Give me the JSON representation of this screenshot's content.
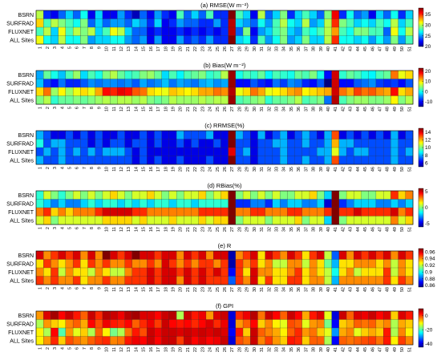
{
  "figure": {
    "rows": [
      "BSRN",
      "SURFRAD",
      "FLUXNET",
      "ALL Sites"
    ],
    "columns": [
      "1",
      "2",
      "3",
      "4",
      "5",
      "6",
      "7",
      "8",
      "9",
      "10",
      "11",
      "12",
      "13",
      "14",
      "15",
      "16",
      "17",
      "18",
      "19",
      "20",
      "21",
      "22",
      "23",
      "24",
      "25",
      "26",
      "27",
      "28",
      "29",
      "30",
      "31",
      "32",
      "33",
      "34",
      "35",
      "36",
      "37",
      "38",
      "39",
      "40",
      "41",
      "42",
      "43",
      "44",
      "45",
      "46",
      "47",
      "48",
      "49",
      "50",
      "51"
    ]
  },
  "chart_data": [
    {
      "type": "heatmap",
      "title": "(a) RMSE(W m⁻²)",
      "colorbar_ticks": [
        20,
        25,
        30,
        35
      ],
      "clim": [
        20,
        38
      ],
      "values": [
        [
          30,
          23,
          22,
          24,
          26,
          24,
          27,
          22,
          26,
          22,
          22,
          25,
          23,
          21,
          24,
          22,
          25,
          23,
          22,
          28,
          24,
          26,
          24,
          28,
          23,
          23,
          38,
          28,
          26,
          22,
          30,
          24,
          26,
          29,
          23,
          26,
          28,
          26,
          24,
          29,
          36,
          23,
          27,
          24,
          25,
          22,
          26,
          24,
          27,
          23,
          26
        ],
        [
          32,
          28,
          30,
          29,
          28,
          27,
          29,
          24,
          26,
          24,
          25,
          25,
          24,
          26,
          25,
          23,
          26,
          22,
          23,
          25,
          24,
          24,
          23,
          23,
          25,
          23,
          37,
          26,
          25,
          24,
          27,
          25,
          28,
          30,
          27,
          26,
          30,
          25,
          26,
          30,
          35,
          29,
          28,
          26,
          27,
          26,
          28,
          27,
          30,
          26,
          28
        ],
        [
          28,
          30,
          26,
          31,
          28,
          30,
          29,
          30,
          26,
          28,
          31,
          30,
          26,
          24,
          24,
          22,
          23,
          22,
          22,
          23,
          22,
          23,
          22,
          23,
          22,
          23,
          37,
          24,
          29,
          22,
          25,
          26,
          28,
          29,
          26,
          25,
          28,
          27,
          28,
          30,
          33,
          28,
          27,
          29,
          29,
          28,
          28,
          24,
          31,
          27,
          30
        ],
        [
          31,
          27,
          26,
          30,
          27,
          27,
          29,
          25,
          26,
          26,
          27,
          27,
          25,
          24,
          25,
          22,
          25,
          22,
          22,
          25,
          23,
          24,
          23,
          25,
          23,
          23,
          38,
          26,
          27,
          23,
          28,
          25,
          27,
          29,
          25,
          26,
          29,
          26,
          26,
          30,
          35,
          27,
          27,
          26,
          27,
          25,
          27,
          25,
          29,
          25,
          28
        ]
      ]
    },
    {
      "type": "heatmap",
      "title": "(b) Bias(W m⁻²)",
      "colorbar_ticks": [
        -10,
        0,
        10,
        20
      ],
      "clim": [
        -15,
        23
      ],
      "values": [
        [
          -4,
          3,
          0,
          -3,
          2,
          5,
          -2,
          2,
          0,
          4,
          6,
          3,
          1,
          2,
          4,
          5,
          3,
          -2,
          2,
          -1,
          2,
          3,
          4,
          1,
          2,
          6,
          22,
          0,
          2,
          1,
          3,
          -1,
          2,
          1,
          0,
          3,
          2,
          4,
          0,
          -10,
          20,
          1,
          3,
          2,
          0,
          -1,
          2,
          3,
          14,
          8,
          10
        ],
        [
          -3,
          -8,
          -10,
          -6,
          -9,
          -9,
          -7,
          -5,
          -6,
          -5,
          -5,
          -6,
          -5,
          -7,
          -4,
          -6,
          -5,
          -3,
          -6,
          -4,
          -5,
          -6,
          -4,
          -3,
          -5,
          -4,
          22,
          -10,
          -10,
          -7,
          -9,
          -10,
          -6,
          -8,
          -5,
          -6,
          -9,
          -10,
          -7,
          -15,
          20,
          -10,
          -10,
          -7,
          -6,
          -5,
          -8,
          -9,
          -8,
          -10,
          -7
        ],
        [
          10,
          14,
          5,
          9,
          5,
          8,
          10,
          8,
          12,
          18,
          17,
          19,
          18,
          15,
          14,
          10,
          9,
          8,
          11,
          10,
          9,
          10,
          12,
          12,
          14,
          13,
          21,
          8,
          10,
          14,
          12,
          8,
          9,
          10,
          12,
          13,
          9,
          10,
          11,
          12,
          20,
          14,
          12,
          16,
          14,
          15,
          13,
          12,
          18,
          10,
          12
        ],
        [
          4,
          6,
          1,
          3,
          3,
          4,
          3,
          4,
          5,
          6,
          5,
          6,
          6,
          5,
          6,
          4,
          3,
          4,
          6,
          5,
          5,
          5,
          6,
          5,
          6,
          6,
          22,
          2,
          3,
          4,
          5,
          1,
          3,
          3,
          4,
          6,
          2,
          3,
          4,
          -6,
          21,
          2,
          4,
          5,
          5,
          4,
          4,
          5,
          9,
          4,
          6
        ]
      ]
    },
    {
      "type": "heatmap",
      "title": "(c) RRMSE(%)",
      "colorbar_ticks": [
        6,
        8,
        10,
        12,
        14
      ],
      "clim": [
        5,
        15
      ],
      "values": [
        [
          8,
          7,
          6,
          6,
          7,
          6,
          7,
          6,
          7,
          6,
          6,
          7,
          6,
          6,
          7,
          6,
          7,
          6,
          6,
          8,
          7,
          7,
          7,
          8,
          6,
          6,
          15,
          8,
          7,
          6,
          8,
          6,
          7,
          8,
          6,
          7,
          8,
          7,
          6,
          8,
          13,
          6,
          7,
          6,
          7,
          6,
          7,
          6,
          8,
          6,
          7
        ],
        [
          9,
          7,
          8,
          8,
          7,
          7,
          7,
          6,
          7,
          6,
          7,
          7,
          6,
          7,
          7,
          6,
          7,
          6,
          6,
          7,
          6,
          7,
          6,
          6,
          7,
          6,
          15,
          7,
          7,
          6,
          7,
          7,
          8,
          8,
          7,
          7,
          8,
          7,
          7,
          8,
          12,
          8,
          8,
          7,
          7,
          7,
          7,
          7,
          8,
          7,
          7
        ],
        [
          7,
          8,
          7,
          8,
          7,
          8,
          7,
          8,
          7,
          8,
          8,
          8,
          7,
          6,
          7,
          6,
          6,
          6,
          6,
          6,
          6,
          6,
          6,
          6,
          6,
          6,
          14,
          7,
          8,
          6,
          7,
          7,
          7,
          8,
          7,
          7,
          7,
          7,
          8,
          8,
          11,
          8,
          7,
          8,
          8,
          7,
          7,
          7,
          8,
          7,
          8
        ],
        [
          8,
          7,
          7,
          8,
          7,
          7,
          7,
          7,
          7,
          7,
          7,
          7,
          7,
          6,
          7,
          6,
          7,
          6,
          6,
          7,
          6,
          6,
          6,
          7,
          6,
          6,
          15,
          7,
          7,
          6,
          7,
          7,
          7,
          8,
          7,
          7,
          8,
          7,
          7,
          8,
          13,
          7,
          7,
          7,
          7,
          7,
          7,
          7,
          8,
          7,
          7
        ]
      ]
    },
    {
      "type": "heatmap",
      "title": "(d) RBias(%)",
      "colorbar_ticks": [
        -5,
        0,
        5
      ],
      "clim": [
        -6,
        6
      ],
      "values": [
        [
          -1,
          1,
          0,
          -1,
          0,
          1,
          0,
          1,
          0,
          1,
          2,
          1,
          0,
          1,
          1,
          2,
          1,
          0,
          1,
          0,
          1,
          1,
          2,
          0,
          1,
          2,
          6,
          0,
          1,
          0,
          1,
          0,
          1,
          0,
          0,
          1,
          1,
          2,
          0,
          -2,
          6,
          0,
          1,
          1,
          0,
          0,
          1,
          1,
          4,
          2,
          3
        ],
        [
          -1,
          -2,
          -3,
          -2,
          -3,
          -3,
          -2,
          -1,
          -2,
          -1,
          -1,
          -2,
          -1,
          -2,
          -1,
          -2,
          -1,
          -1,
          -2,
          -1,
          -1,
          -2,
          -1,
          -1,
          -1,
          -1,
          6,
          -4,
          -4,
          -3,
          -3,
          -4,
          -2,
          -3,
          -2,
          -2,
          -3,
          -3,
          -2,
          -5,
          6,
          -4,
          -3,
          -2,
          -2,
          -2,
          -3,
          -3,
          -2,
          -3,
          -2
        ],
        [
          3,
          4,
          2,
          3,
          2,
          3,
          3,
          3,
          4,
          5,
          5,
          5,
          5,
          4,
          4,
          3,
          3,
          3,
          3,
          3,
          3,
          3,
          4,
          4,
          4,
          4,
          6,
          3,
          3,
          4,
          4,
          3,
          3,
          3,
          4,
          4,
          3,
          3,
          3,
          4,
          6,
          4,
          4,
          5,
          4,
          4,
          4,
          4,
          5,
          3,
          4
        ],
        [
          1,
          2,
          0,
          1,
          1,
          1,
          1,
          1,
          1,
          2,
          2,
          2,
          2,
          1,
          2,
          1,
          1,
          1,
          2,
          1,
          1,
          1,
          2,
          1,
          2,
          2,
          6,
          0,
          1,
          1,
          1,
          0,
          1,
          1,
          1,
          2,
          0,
          1,
          1,
          -2,
          6,
          0,
          1,
          1,
          1,
          1,
          1,
          1,
          3,
          1,
          2
        ]
      ]
    },
    {
      "type": "heatmap",
      "title": "(e) R",
      "colorbar_ticks": [
        0.86,
        0.88,
        0.9,
        0.92,
        0.94,
        0.96
      ],
      "clim": [
        0.855,
        0.97
      ],
      "values": [
        [
          0.96,
          0.94,
          0.95,
          0.96,
          0.95,
          0.96,
          0.94,
          0.96,
          0.94,
          0.97,
          0.96,
          0.95,
          0.96,
          0.97,
          0.96,
          0.96,
          0.95,
          0.96,
          0.96,
          0.94,
          0.96,
          0.95,
          0.96,
          0.94,
          0.96,
          0.96,
          0.86,
          0.94,
          0.95,
          0.96,
          0.93,
          0.96,
          0.95,
          0.94,
          0.96,
          0.95,
          0.93,
          0.95,
          0.96,
          0.92,
          0.88,
          0.96,
          0.94,
          0.96,
          0.95,
          0.96,
          0.95,
          0.96,
          0.94,
          0.96,
          0.95
        ],
        [
          0.93,
          0.95,
          0.94,
          0.93,
          0.94,
          0.95,
          0.93,
          0.95,
          0.94,
          0.95,
          0.94,
          0.94,
          0.95,
          0.94,
          0.94,
          0.95,
          0.94,
          0.96,
          0.95,
          0.94,
          0.95,
          0.94,
          0.95,
          0.95,
          0.94,
          0.95,
          0.86,
          0.95,
          0.94,
          0.95,
          0.93,
          0.94,
          0.92,
          0.92,
          0.94,
          0.94,
          0.92,
          0.94,
          0.93,
          0.91,
          0.89,
          0.93,
          0.93,
          0.94,
          0.94,
          0.94,
          0.93,
          0.94,
          0.92,
          0.94,
          0.93
        ],
        [
          0.94,
          0.93,
          0.95,
          0.92,
          0.94,
          0.93,
          0.93,
          0.92,
          0.94,
          0.93,
          0.92,
          0.92,
          0.94,
          0.95,
          0.95,
          0.96,
          0.95,
          0.96,
          0.96,
          0.95,
          0.96,
          0.95,
          0.96,
          0.95,
          0.96,
          0.95,
          0.87,
          0.95,
          0.93,
          0.96,
          0.94,
          0.94,
          0.93,
          0.93,
          0.94,
          0.95,
          0.93,
          0.94,
          0.93,
          0.92,
          0.9,
          0.93,
          0.94,
          0.92,
          0.93,
          0.93,
          0.93,
          0.95,
          0.92,
          0.94,
          0.93
        ],
        [
          0.95,
          0.94,
          0.95,
          0.94,
          0.94,
          0.95,
          0.93,
          0.94,
          0.94,
          0.95,
          0.94,
          0.94,
          0.95,
          0.95,
          0.95,
          0.96,
          0.95,
          0.96,
          0.96,
          0.94,
          0.96,
          0.95,
          0.96,
          0.95,
          0.95,
          0.95,
          0.88,
          0.95,
          0.94,
          0.96,
          0.93,
          0.95,
          0.93,
          0.93,
          0.95,
          0.95,
          0.93,
          0.94,
          0.94,
          0.92,
          0.89,
          0.94,
          0.94,
          0.94,
          0.94,
          0.94,
          0.94,
          0.95,
          0.93,
          0.95,
          0.94
        ]
      ]
    },
    {
      "type": "heatmap",
      "title": "(f) GPI",
      "colorbar_ticks": [
        -40,
        -20,
        0
      ],
      "clim": [
        -45,
        10
      ],
      "values": [
        [
          -5,
          5,
          8,
          3,
          6,
          2,
          -2,
          6,
          1,
          7,
          6,
          4,
          7,
          8,
          5,
          5,
          3,
          6,
          7,
          -15,
          6,
          2,
          4,
          -5,
          5,
          6,
          -40,
          1,
          4,
          7,
          -3,
          6,
          3,
          -2,
          6,
          3,
          -6,
          2,
          5,
          -12,
          -40,
          6,
          -2,
          5,
          4,
          6,
          3,
          5,
          -8,
          5,
          2
        ],
        [
          -15,
          -5,
          -8,
          -10,
          -4,
          -2,
          -6,
          3,
          -1,
          4,
          2,
          1,
          3,
          -2,
          1,
          4,
          0,
          6,
          3,
          2,
          3,
          1,
          3,
          5,
          1,
          4,
          -40,
          -5,
          -2,
          3,
          -8,
          -4,
          -10,
          -12,
          -1,
          -2,
          -12,
          -5,
          -4,
          -18,
          -38,
          -8,
          -6,
          -2,
          -3,
          -2,
          -6,
          -4,
          -15,
          -6,
          -8
        ],
        [
          -10,
          -15,
          3,
          -20,
          -5,
          -12,
          -8,
          -15,
          -2,
          -10,
          -18,
          -15,
          -3,
          2,
          -1,
          6,
          4,
          6,
          6,
          5,
          6,
          5,
          6,
          5,
          6,
          5,
          -38,
          2,
          -8,
          6,
          -2,
          -4,
          -6,
          -10,
          -2,
          1,
          -5,
          -3,
          -8,
          -12,
          -30,
          -6,
          -4,
          -12,
          -8,
          -6,
          -8,
          2,
          -15,
          -4,
          -10
        ],
        [
          -10,
          -5,
          1,
          -8,
          -1,
          -3,
          -5,
          -2,
          0,
          1,
          -4,
          -3,
          2,
          4,
          3,
          6,
          3,
          6,
          6,
          0,
          6,
          3,
          5,
          3,
          4,
          6,
          -40,
          -1,
          -3,
          6,
          -4,
          0,
          -5,
          -8,
          2,
          1,
          -8,
          -2,
          -2,
          -15,
          -38,
          -2,
          -3,
          -2,
          -1,
          0,
          -3,
          2,
          -10,
          0,
          -4
        ]
      ]
    }
  ]
}
